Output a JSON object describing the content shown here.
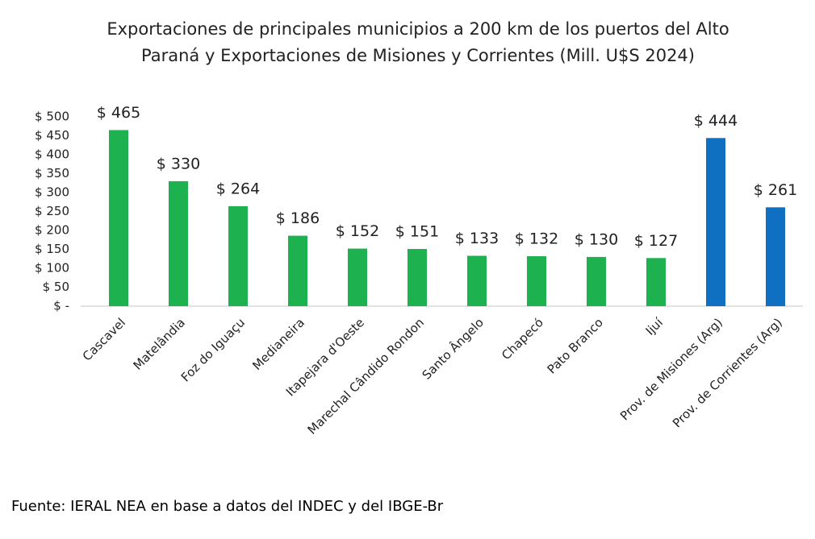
{
  "chart_data": {
    "type": "bar",
    "title": "Exportaciones de principales municipios a 200 km de los puertos del Alto Paraná y Exportaciones de Misiones y Corrientes (Mill. U$S 2024)",
    "categories": [
      "Cascavel",
      "Matelândia",
      "Foz do Iguaçu",
      "Medianeira",
      "Itapejara d'Oeste",
      "Marechal Cândido Rondon",
      "Santo Ângelo",
      "Chapecó",
      "Pato Branco",
      "Ijuí",
      "Prov. de Misiones (Arg)",
      "Prov. de Corrientes (Arg)"
    ],
    "values": [
      465,
      330,
      264,
      186,
      152,
      151,
      133,
      132,
      130,
      127,
      444,
      261
    ],
    "value_labels": [
      "$ 465",
      "$ 330",
      "$ 264",
      "$ 186",
      "$ 152",
      "$ 151",
      "$ 133",
      "$ 132",
      "$ 130",
      "$ 127",
      "$ 444",
      "$ 261"
    ],
    "colors": [
      "#1db14f",
      "#1db14f",
      "#1db14f",
      "#1db14f",
      "#1db14f",
      "#1db14f",
      "#1db14f",
      "#1db14f",
      "#1db14f",
      "#1db14f",
      "#0f6fc0",
      "#0f6fc0"
    ],
    "ylim": [
      0,
      500
    ],
    "yticks": [
      {
        "value": 0,
        "label": "$ -"
      },
      {
        "value": 50,
        "label": "$ 50"
      },
      {
        "value": 100,
        "label": "$ 100"
      },
      {
        "value": 150,
        "label": "$ 150"
      },
      {
        "value": 200,
        "label": "$ 200"
      },
      {
        "value": 250,
        "label": "$ 250"
      },
      {
        "value": 300,
        "label": "$ 300"
      },
      {
        "value": 350,
        "label": "$ 350"
      },
      {
        "value": 400,
        "label": "$ 400"
      },
      {
        "value": 450,
        "label": "$ 450"
      },
      {
        "value": 500,
        "label": "$ 500"
      }
    ],
    "grid": false,
    "source": "Fuente: IERAL NEA en base a datos del INDEC y del IBGE-Br"
  }
}
